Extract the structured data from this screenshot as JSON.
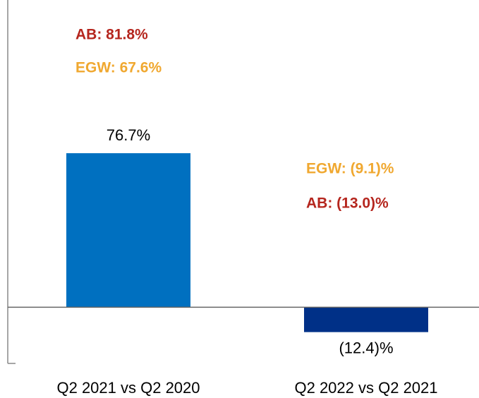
{
  "chart_data": {
    "type": "bar",
    "categories": [
      "Q2 2021 vs Q2 2020",
      "Q2 2022 vs Q2 2021"
    ],
    "values": [
      76.7,
      -12.4
    ],
    "value_labels": [
      "76.7%",
      "(12.4)%"
    ],
    "colors": [
      "#0070c0",
      "#003087"
    ],
    "ylim": [
      -28,
      153
    ],
    "annotations": [
      {
        "text": "AB: 81.8%",
        "color": "#b5261e"
      },
      {
        "text": "EGW: 67.6%",
        "color": "#f0a830"
      },
      {
        "text": "EGW: (9.1)%",
        "color": "#f0a830"
      },
      {
        "text": "AB: (13.0)%",
        "color": "#b5261e"
      }
    ]
  }
}
